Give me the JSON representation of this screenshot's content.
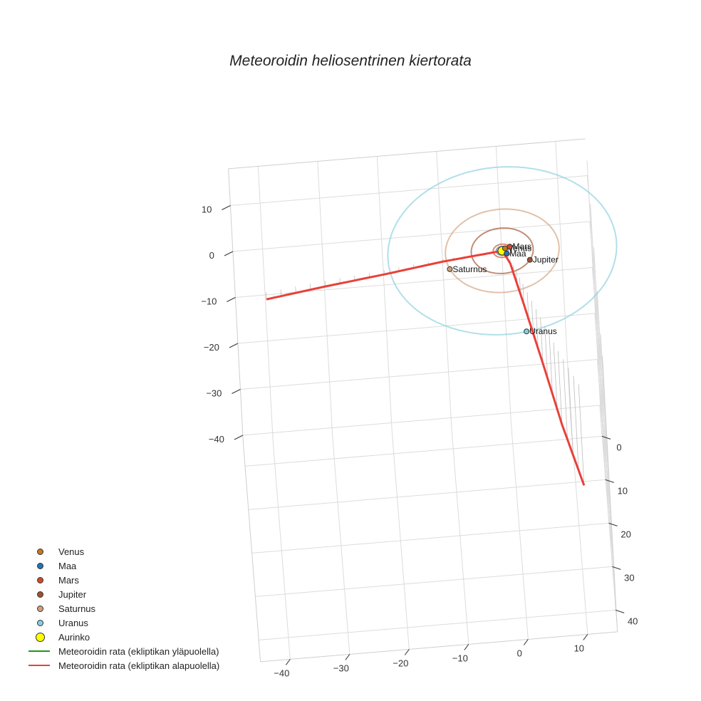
{
  "chart_data": {
    "type": "scatter3d",
    "title": "Meteoroidin heliosentrinen kiertorata",
    "axes": {
      "x": {
        "ticks": [
          -40,
          -30,
          -20,
          -10,
          0,
          10
        ],
        "range": [
          -45,
          15
        ]
      },
      "y": {
        "ticks": [
          0,
          10,
          20,
          30,
          40
        ],
        "range": [
          -5,
          45
        ]
      },
      "z": {
        "ticks": [
          10,
          0,
          -10,
          -20,
          -30,
          -40
        ],
        "range": [
          -42,
          18
        ]
      }
    },
    "sun": {
      "name": "Aurinko",
      "color": "#ffff00",
      "position": [
        0,
        0,
        0
      ]
    },
    "planets": [
      {
        "name": "Venus",
        "label": "Venus",
        "color": "#c8781e",
        "orbit_radius_au": 0.72,
        "position": [
          0.5,
          -0.5,
          0
        ],
        "orbit_color": "#c8781e"
      },
      {
        "name": "Maa",
        "label": "Maa",
        "color": "#1f77b4",
        "orbit_radius_au": 1.0,
        "position": [
          0.7,
          0.7,
          0
        ],
        "orbit_color": "#1f77b4"
      },
      {
        "name": "Mars",
        "label": "Mars",
        "color": "#d2492d",
        "orbit_radius_au": 1.52,
        "position": [
          1.3,
          -0.8,
          0
        ],
        "orbit_color": "#d2492d"
      },
      {
        "name": "Jupiter",
        "label": "Jupiter",
        "color": "#a0522d",
        "orbit_radius_au": 5.2,
        "position": [
          4.5,
          2.6,
          0
        ],
        "orbit_color": "#a0522d"
      },
      {
        "name": "Saturnus",
        "label": "Saturnus",
        "color": "#d2a07a",
        "orbit_radius_au": 9.54,
        "position": [
          -9.0,
          3.2,
          0
        ],
        "orbit_color": "#d2a07a"
      },
      {
        "name": "Uranus",
        "label": "Uranus",
        "color": "#87cede",
        "orbit_radius_au": 19.2,
        "position": [
          3.0,
          18.9,
          0
        ],
        "orbit_color": "#87cede"
      }
    ],
    "meteoroid_track": {
      "color_below": "#e8413a",
      "color_above": "#1a9a1a",
      "points": [
        [
          -40,
          5,
          -1.5
        ],
        [
          -30,
          3.5,
          -1.2
        ],
        [
          -20,
          2.2,
          -0.9
        ],
        [
          -10,
          0.8,
          -0.5
        ],
        [
          -3,
          0.2,
          -0.2
        ],
        [
          0,
          0,
          0
        ],
        [
          1.2,
          2.0,
          -1.0
        ],
        [
          3.0,
          8.0,
          -4.5
        ],
        [
          5.5,
          16.0,
          -10.0
        ],
        [
          8.0,
          24.0,
          -16.0
        ],
        [
          11.0,
          32.0,
          -22.0
        ]
      ]
    },
    "legend": [
      {
        "label": "Venus",
        "kind": "dot",
        "color": "#c8781e"
      },
      {
        "label": "Maa",
        "kind": "dot",
        "color": "#1f77b4"
      },
      {
        "label": "Mars",
        "kind": "dot",
        "color": "#d2492d"
      },
      {
        "label": "Jupiter",
        "kind": "dot",
        "color": "#a0522d"
      },
      {
        "label": "Saturnus",
        "kind": "dot",
        "color": "#d2a07a"
      },
      {
        "label": "Uranus",
        "kind": "dot",
        "color": "#87cede"
      },
      {
        "label": "Aurinko",
        "kind": "bigdot",
        "color": "#ffff00"
      },
      {
        "label": "Meteoroidin rata (ekliptikan yläpuolella)",
        "kind": "line",
        "color": "#1a9a1a"
      },
      {
        "label": "Meteoroidin rata (ekliptikan alapuolella)",
        "kind": "line",
        "color": "#e8413a"
      }
    ]
  }
}
